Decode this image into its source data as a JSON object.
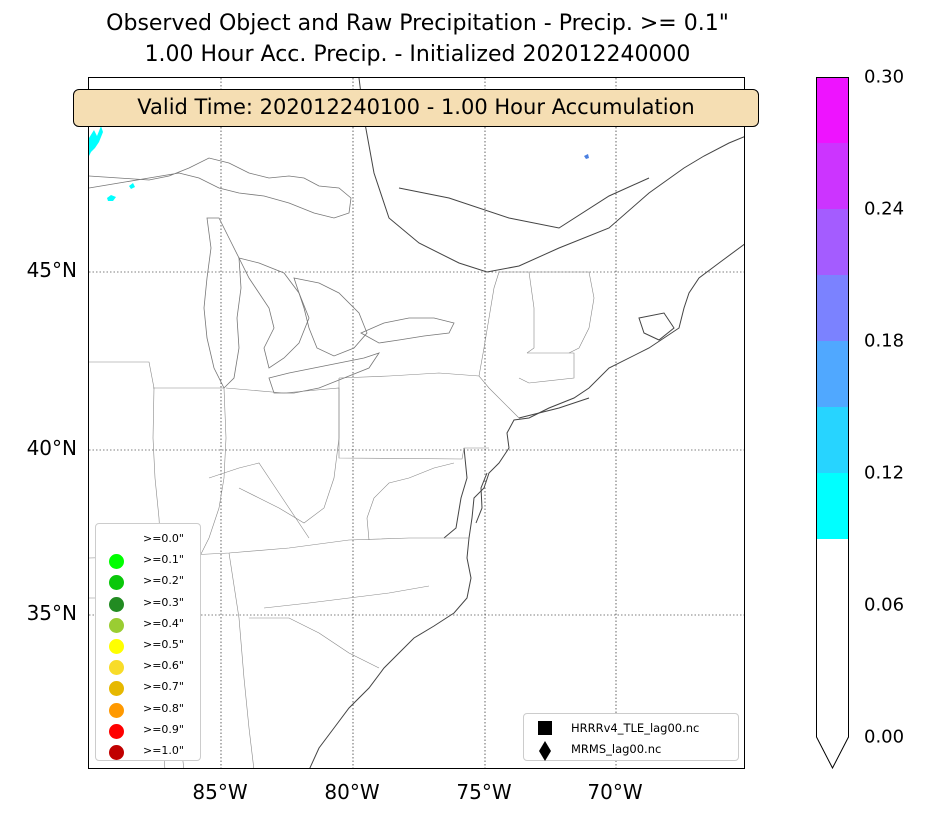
{
  "title": {
    "line1": "Observed Object and Raw Precipitation - Precip. >= 0.1\"",
    "line2": "1.00 Hour Acc. Precip. - Initialized 202012240000"
  },
  "valid_time": "Valid Time: 202012240100 - 1.00 Hour Accumulation",
  "map": {
    "lat_labels": [
      "45°N",
      "40°N",
      "35°N"
    ],
    "lon_labels": [
      "85°W",
      "80°W",
      "75°W",
      "70°W"
    ],
    "grid_style": "dotted",
    "precip_fill_color": "#00ffff",
    "small_precip_color": "#4a7fe0"
  },
  "threshold_legend": {
    "items": [
      {
        "label": ">=0.0\"",
        "color": "#ffffff"
      },
      {
        "label": ">=0.1\"",
        "color": "#00ff00"
      },
      {
        "label": ">=0.2\"",
        "color": "#0ac70a"
      },
      {
        "label": ">=0.3\"",
        "color": "#228b22"
      },
      {
        "label": ">=0.4\"",
        "color": "#9acd32"
      },
      {
        "label": ">=0.5\"",
        "color": "#ffff00"
      },
      {
        "label": ">=0.6\"",
        "color": "#f8dc29"
      },
      {
        "label": ">=0.7\"",
        "color": "#e6b800"
      },
      {
        "label": ">=0.8\"",
        "color": "#ff9900"
      },
      {
        "label": ">=0.9\"",
        "color": "#ff0000"
      },
      {
        "label": ">=1.0\"",
        "color": "#c00000"
      }
    ]
  },
  "model_legend": {
    "items": [
      {
        "label": "HRRRv4_TLE_lag00.nc",
        "marker": "square"
      },
      {
        "label": "MRMS_lag00.nc",
        "marker": "diamond"
      }
    ]
  },
  "colorbar": {
    "tick_labels": [
      "0.30",
      "0.24",
      "0.18",
      "0.12",
      "0.06",
      "0.00"
    ],
    "range": [
      0.0,
      0.3
    ],
    "extend": "min",
    "bands": [
      {
        "from": 0.0,
        "to": 0.09,
        "color": "#ffffff"
      },
      {
        "from": 0.09,
        "to": 0.12,
        "color": "#00ffff"
      },
      {
        "from": 0.12,
        "to": 0.15,
        "color": "#27d4ff"
      },
      {
        "from": 0.15,
        "to": 0.18,
        "color": "#50a8ff"
      },
      {
        "from": 0.18,
        "to": 0.21,
        "color": "#7b82ff"
      },
      {
        "from": 0.21,
        "to": 0.24,
        "color": "#a45cff"
      },
      {
        "from": 0.24,
        "to": 0.27,
        "color": "#cc34ff"
      },
      {
        "from": 0.27,
        "to": 0.3,
        "color": "#ee13ff"
      }
    ]
  }
}
